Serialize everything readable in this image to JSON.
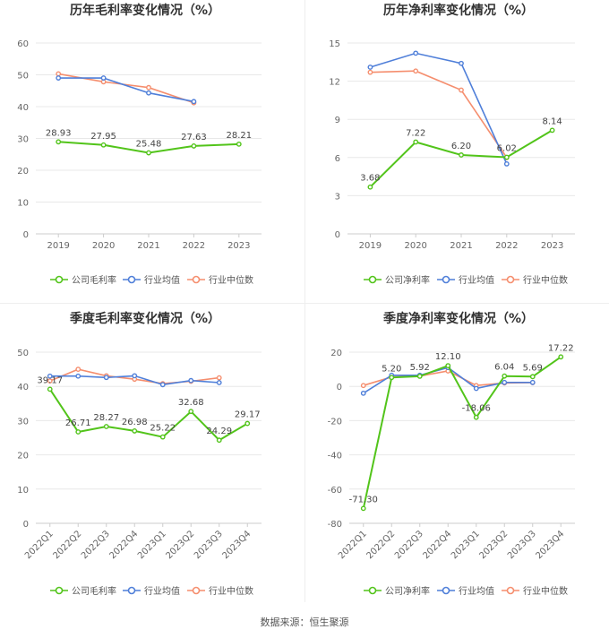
{
  "source_text": "数据来源：恒生聚源",
  "chart_data": [
    {
      "type": "line",
      "title": "历年毛利率变化情况（%）",
      "categories": [
        "2019",
        "2020",
        "2021",
        "2022",
        "2023"
      ],
      "ylim": [
        0,
        60
      ],
      "yticks": [
        0,
        10,
        20,
        30,
        40,
        50,
        60
      ],
      "grid": true,
      "legend_position": "bottom",
      "series": [
        {
          "name": "公司毛利率",
          "color": "#52c41a",
          "values": [
            28.93,
            27.95,
            25.48,
            27.63,
            28.21
          ],
          "labels": [
            "28.93",
            "27.95",
            "25.48",
            "27.63",
            "28.21"
          ]
        },
        {
          "name": "行业均值",
          "color": "#4f7fd9",
          "values": [
            49.0,
            49.0,
            44.3,
            41.6,
            null
          ]
        },
        {
          "name": "行业中位数",
          "color": "#f58e6e",
          "values": [
            50.3,
            47.8,
            46.0,
            41.2,
            null
          ]
        }
      ]
    },
    {
      "type": "line",
      "title": "历年净利率变化情况（%）",
      "categories": [
        "2019",
        "2020",
        "2021",
        "2022",
        "2023"
      ],
      "ylim": [
        0,
        15
      ],
      "yticks": [
        0,
        3,
        6,
        9,
        12,
        15
      ],
      "grid": true,
      "legend_position": "bottom",
      "series": [
        {
          "name": "公司净利率",
          "color": "#52c41a",
          "values": [
            3.68,
            7.22,
            6.2,
            6.02,
            8.14
          ],
          "labels": [
            "3.68",
            "7.22",
            "6.20",
            "6.02",
            "8.14"
          ]
        },
        {
          "name": "行业均值",
          "color": "#4f7fd9",
          "values": [
            13.1,
            14.2,
            13.4,
            5.5,
            null
          ]
        },
        {
          "name": "行业中位数",
          "color": "#f58e6e",
          "values": [
            12.7,
            12.8,
            11.3,
            6.0,
            null
          ]
        }
      ]
    },
    {
      "type": "line",
      "title": "季度毛利率变化情况（%）",
      "categories": [
        "2022Q1",
        "2022Q2",
        "2022Q3",
        "2022Q4",
        "2023Q1",
        "2023Q2",
        "2023Q3",
        "2023Q4"
      ],
      "ylim": [
        0,
        50
      ],
      "yticks": [
        0,
        10,
        20,
        30,
        40,
        50
      ],
      "grid": true,
      "legend_position": "bottom",
      "series": [
        {
          "name": "公司毛利率",
          "color": "#52c41a",
          "values": [
            39.17,
            26.71,
            28.27,
            26.98,
            25.22,
            32.68,
            24.29,
            29.17
          ],
          "labels": [
            "39.17",
            "26.71",
            "28.27",
            "26.98",
            "25.22",
            "32.68",
            "24.29",
            "29.17"
          ]
        },
        {
          "name": "行业均值",
          "color": "#4f7fd9",
          "values": [
            43.0,
            43.0,
            42.6,
            43.1,
            40.5,
            41.7,
            41.1,
            null
          ]
        },
        {
          "name": "行业中位数",
          "color": "#f58e6e",
          "values": [
            41.6,
            45.0,
            43.1,
            42.1,
            40.8,
            41.5,
            42.5,
            null
          ]
        }
      ]
    },
    {
      "type": "line",
      "title": "季度净利率变化情况（%）",
      "categories": [
        "2022Q1",
        "2022Q2",
        "2022Q3",
        "2022Q4",
        "2023Q1",
        "2023Q2",
        "2023Q3",
        "2023Q4"
      ],
      "ylim": [
        -80,
        20
      ],
      "yticks": [
        -80,
        -60,
        -40,
        -20,
        0,
        20
      ],
      "grid": true,
      "legend_position": "bottom",
      "series": [
        {
          "name": "公司净利率",
          "color": "#52c41a",
          "values": [
            -71.3,
            5.2,
            5.92,
            12.1,
            -18.06,
            6.04,
            5.69,
            17.22
          ],
          "labels": [
            "-71.30",
            "5.20",
            "5.92",
            "12.10",
            "-18.06",
            "6.04",
            "5.69",
            "17.22"
          ]
        },
        {
          "name": "行业均值",
          "color": "#4f7fd9",
          "values": [
            -4.0,
            6.5,
            6.5,
            11.0,
            -1.2,
            2.3,
            2.3,
            null
          ]
        },
        {
          "name": "行业中位数",
          "color": "#f58e6e",
          "values": [
            0.5,
            5.5,
            6.0,
            9.0,
            0.5,
            2.0,
            2.2,
            null
          ]
        }
      ]
    }
  ]
}
